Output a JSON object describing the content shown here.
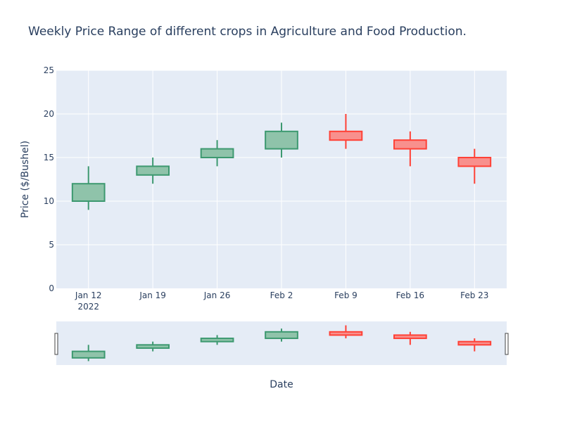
{
  "chart_data": {
    "type": "candlestick",
    "title": "Weekly Price Range of different crops in Agriculture and Food Production.",
    "xlabel": "Date",
    "ylabel": "Price ($/Bushel)",
    "ylim": [
      0,
      25
    ],
    "yticks": [
      0,
      5,
      10,
      15,
      20,
      25
    ],
    "year_label": "2022",
    "categories": [
      "Jan 12",
      "Jan 19",
      "Jan 26",
      "Feb 2",
      "Feb 9",
      "Feb 16",
      "Feb 23"
    ],
    "open": [
      10,
      13,
      15,
      16,
      18,
      17,
      15
    ],
    "high": [
      14,
      15,
      17,
      19,
      20,
      18,
      16
    ],
    "low": [
      9,
      12,
      14,
      15,
      16,
      14,
      12
    ],
    "close": [
      12,
      14,
      16,
      18,
      17,
      16,
      14
    ],
    "rangeslider": true,
    "grid": true,
    "colors": {
      "increasing": "#3D9970",
      "increasing_fill": "#8FC3AA",
      "decreasing": "#FF4136",
      "decreasing_fill": "#F8908D",
      "plot_bg": "#E5ECF6",
      "grid": "#FFFFFF",
      "text": "#2a3f5f"
    }
  }
}
